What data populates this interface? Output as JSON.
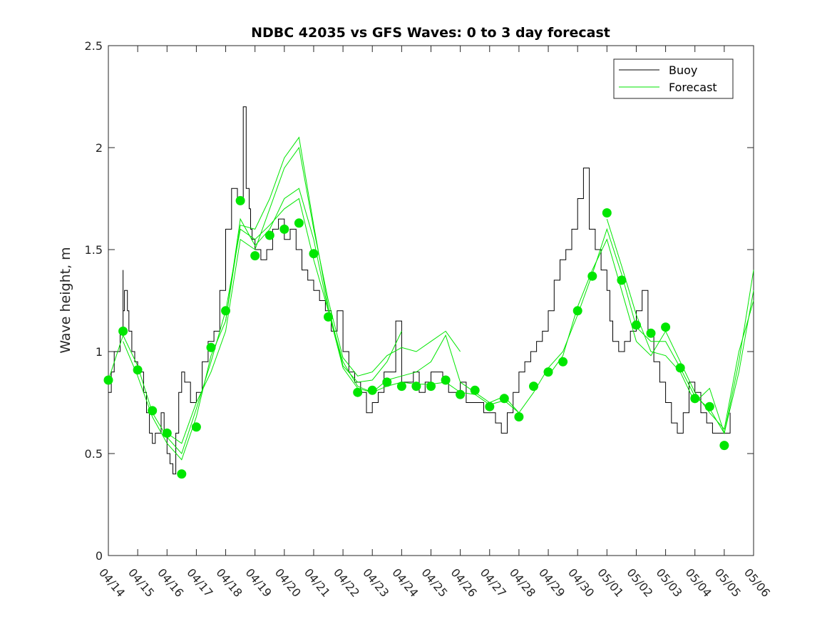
{
  "chart_data": {
    "type": "line",
    "title": "NDBC 42035 vs GFS Waves: 0 to 3 day forecast",
    "xlabel": "",
    "ylabel": "Wave height, m",
    "ylim": [
      0,
      2.5
    ],
    "yticks": [
      "0",
      "0.5",
      "1",
      "1.5",
      "2",
      "2.5"
    ],
    "xlim_days": [
      0,
      22
    ],
    "xticks": [
      "04/14",
      "04/15",
      "04/16",
      "04/17",
      "04/18",
      "04/19",
      "04/20",
      "04/21",
      "04/22",
      "04/23",
      "04/24",
      "04/25",
      "04/26",
      "04/27",
      "04/28",
      "04/29",
      "04/30",
      "05/01",
      "05/02",
      "05/03",
      "05/04",
      "05/05",
      "05/06"
    ],
    "legend": {
      "placement": "top-right",
      "entries": [
        "Buoy",
        "Forecast"
      ]
    },
    "colors": {
      "buoy": "#000000",
      "forecast": "#00e600",
      "axis": "#262626"
    },
    "buoy": {
      "name": "Buoy",
      "x": [
        0,
        0.1,
        0.2,
        0.4,
        0.5,
        0.5,
        0.55,
        0.6,
        0.65,
        0.7,
        0.8,
        0.9,
        1.0,
        1.1,
        1.2,
        1.3,
        1.4,
        1.5,
        1.6,
        1.8,
        1.9,
        2.0,
        2.1,
        2.2,
        2.3,
        2.4,
        2.5,
        2.6,
        2.8,
        3.0,
        3.2,
        3.4,
        3.6,
        3.8,
        4.0,
        4.2,
        4.4,
        4.6,
        4.7,
        4.8,
        4.85,
        4.9,
        5.0,
        5.2,
        5.4,
        5.6,
        5.8,
        6.0,
        6.2,
        6.4,
        6.6,
        6.8,
        7.0,
        7.2,
        7.4,
        7.6,
        7.8,
        8.0,
        8.2,
        8.4,
        8.6,
        8.8,
        9.0,
        9.2,
        9.4,
        9.6,
        9.8,
        10.0,
        10.2,
        10.4,
        10.6,
        10.8,
        11.0,
        11.2,
        11.4,
        11.6,
        11.8,
        12.0,
        12.2,
        12.4,
        12.6,
        12.8,
        13.0,
        13.2,
        13.4,
        13.6,
        13.8,
        14.0,
        14.2,
        14.4,
        14.6,
        14.8,
        15.0,
        15.2,
        15.4,
        15.6,
        15.8,
        16.0,
        16.2,
        16.4,
        16.6,
        16.8,
        17.0,
        17.1,
        17.2,
        17.4,
        17.6,
        17.8,
        18.0,
        18.2,
        18.4,
        18.6,
        18.8,
        19.0,
        19.2,
        19.4,
        19.6,
        19.8,
        20.0,
        20.2,
        20.4,
        20.6,
        20.8,
        21.0,
        21.2
      ],
      "y": [
        0.8,
        0.9,
        1.0,
        1.1,
        1.4,
        1.2,
        1.3,
        1.3,
        1.2,
        1.1,
        1.0,
        0.95,
        0.9,
        0.9,
        0.8,
        0.7,
        0.6,
        0.55,
        0.6,
        0.7,
        0.6,
        0.5,
        0.45,
        0.4,
        0.6,
        0.8,
        0.9,
        0.85,
        0.75,
        0.8,
        0.95,
        1.05,
        1.1,
        1.3,
        1.6,
        1.8,
        1.75,
        2.2,
        1.8,
        1.7,
        1.6,
        1.55,
        1.5,
        1.45,
        1.5,
        1.6,
        1.65,
        1.55,
        1.6,
        1.5,
        1.4,
        1.35,
        1.3,
        1.25,
        1.2,
        1.1,
        1.2,
        1.0,
        0.9,
        0.85,
        0.8,
        0.7,
        0.75,
        0.8,
        0.9,
        0.9,
        1.15,
        0.85,
        0.85,
        0.9,
        0.8,
        0.85,
        0.9,
        0.9,
        0.85,
        0.8,
        0.8,
        0.85,
        0.75,
        0.75,
        0.75,
        0.7,
        0.7,
        0.65,
        0.6,
        0.7,
        0.8,
        0.9,
        0.95,
        1.0,
        1.05,
        1.1,
        1.2,
        1.35,
        1.45,
        1.5,
        1.6,
        1.75,
        1.9,
        1.6,
        1.5,
        1.4,
        1.3,
        1.15,
        1.05,
        1.0,
        1.05,
        1.1,
        1.2,
        1.3,
        1.1,
        0.95,
        0.85,
        0.75,
        0.65,
        0.6,
        0.7,
        0.85,
        0.8,
        0.7,
        0.65,
        0.6,
        0.6,
        0.6,
        0.7
      ]
    },
    "forecast_markers": {
      "x": [
        0,
        0.5,
        1,
        1.5,
        2,
        2.5,
        3,
        3.5,
        4,
        4.5,
        5,
        5.5,
        6,
        6.5,
        7,
        7.5,
        8.5,
        9,
        9.5,
        10,
        10.5,
        11,
        11.5,
        12,
        12.5,
        13,
        13.5,
        14,
        14.5,
        15,
        15.5,
        16,
        16.5,
        17,
        17.5,
        18,
        18.5,
        19,
        19.5,
        20,
        20.5,
        21
      ],
      "y": [
        0.86,
        1.1,
        0.91,
        0.71,
        0.6,
        0.4,
        0.63,
        1.02,
        1.2,
        1.74,
        1.47,
        1.57,
        1.6,
        1.63,
        1.48,
        1.17,
        0.8,
        0.81,
        0.85,
        0.83,
        0.83,
        0.83,
        0.86,
        0.79,
        0.81,
        0.73,
        0.77,
        0.68,
        0.83,
        0.9,
        0.95,
        1.2,
        1.37,
        1.68,
        1.35,
        1.13,
        1.09,
        1.12,
        0.92,
        0.77,
        0.73,
        0.54
      ]
    },
    "forecast_runs": [
      {
        "x": [
          0,
          0.5,
          1,
          1.5,
          2,
          2.5,
          3,
          3.5,
          4,
          4.5,
          5,
          5.5,
          6,
          6.5,
          7,
          7.5,
          8,
          8.5,
          9,
          9.5,
          10,
          10.5,
          11,
          11.5,
          12,
          12.5,
          13,
          13.5,
          14,
          14.5,
          15,
          15.5,
          16,
          16.5,
          17,
          17.5,
          18,
          18.5,
          19,
          19.5,
          20,
          20.5,
          21,
          21.5,
          22
        ],
        "y": [
          0.86,
          1.08,
          0.93,
          0.7,
          0.58,
          0.5,
          0.72,
          0.95,
          1.2,
          1.6,
          1.55,
          1.62,
          1.7,
          1.75,
          1.45,
          1.2,
          0.95,
          0.83,
          0.8,
          0.83,
          0.85,
          0.84,
          0.84,
          0.85,
          0.8,
          0.79,
          0.74,
          0.76,
          0.7,
          0.8,
          0.92,
          1.0,
          1.18,
          1.38,
          1.6,
          1.38,
          1.12,
          1.05,
          1.05,
          0.92,
          0.78,
          0.72,
          0.6,
          0.9,
          1.3
        ]
      },
      {
        "x": [
          0.5,
          1,
          1.5,
          2,
          2.5,
          3,
          3.5,
          4,
          4.5,
          5,
          5.5,
          6,
          6.5,
          7,
          7.5,
          8,
          8.5,
          9,
          9.5,
          10
        ],
        "y": [
          1.05,
          0.88,
          0.68,
          0.55,
          0.47,
          0.68,
          0.98,
          1.15,
          1.62,
          1.6,
          1.75,
          1.95,
          2.05,
          1.62,
          1.22,
          0.93,
          0.85,
          0.86,
          0.95,
          1.1
        ]
      },
      {
        "x": [
          2,
          2.5,
          3,
          3.5,
          4,
          4.5,
          5,
          5.5,
          6,
          6.5,
          7,
          7.5,
          8,
          8.5,
          9,
          9.5,
          10,
          10.5,
          11,
          11.5,
          12
        ],
        "y": [
          0.6,
          0.55,
          0.75,
          0.9,
          1.1,
          1.55,
          1.5,
          1.7,
          1.9,
          2.0,
          1.6,
          1.25,
          0.97,
          0.88,
          0.9,
          0.98,
          1.02,
          1.0,
          1.05,
          1.1,
          1.0
        ]
      },
      {
        "x": [
          4,
          4.5,
          5,
          5.5,
          6,
          6.5,
          7,
          7.5,
          8,
          8.5,
          9,
          9.5,
          10,
          10.5,
          11,
          11.5,
          12,
          12.5,
          13,
          13.5,
          14
        ],
        "y": [
          1.15,
          1.65,
          1.52,
          1.6,
          1.75,
          1.8,
          1.55,
          1.2,
          0.92,
          0.82,
          0.8,
          0.86,
          0.88,
          0.9,
          0.95,
          1.08,
          0.85,
          0.8,
          0.75,
          0.78,
          0.7
        ]
      },
      {
        "x": [
          15,
          15.5,
          16,
          16.5,
          17,
          17.5,
          18,
          18.5,
          19,
          19.5,
          20,
          20.5,
          21,
          21.5,
          22
        ],
        "y": [
          0.88,
          0.98,
          1.22,
          1.4,
          1.55,
          1.3,
          1.05,
          0.98,
          1.1,
          0.95,
          0.8,
          0.7,
          0.62,
          1.0,
          1.25
        ]
      },
      {
        "x": [
          17,
          17.5,
          18,
          18.5,
          19,
          19.5,
          20,
          20.5,
          21,
          21.5,
          22
        ],
        "y": [
          1.65,
          1.42,
          1.18,
          1.0,
          0.98,
          0.9,
          0.75,
          0.82,
          0.6,
          0.95,
          1.4
        ]
      }
    ]
  }
}
